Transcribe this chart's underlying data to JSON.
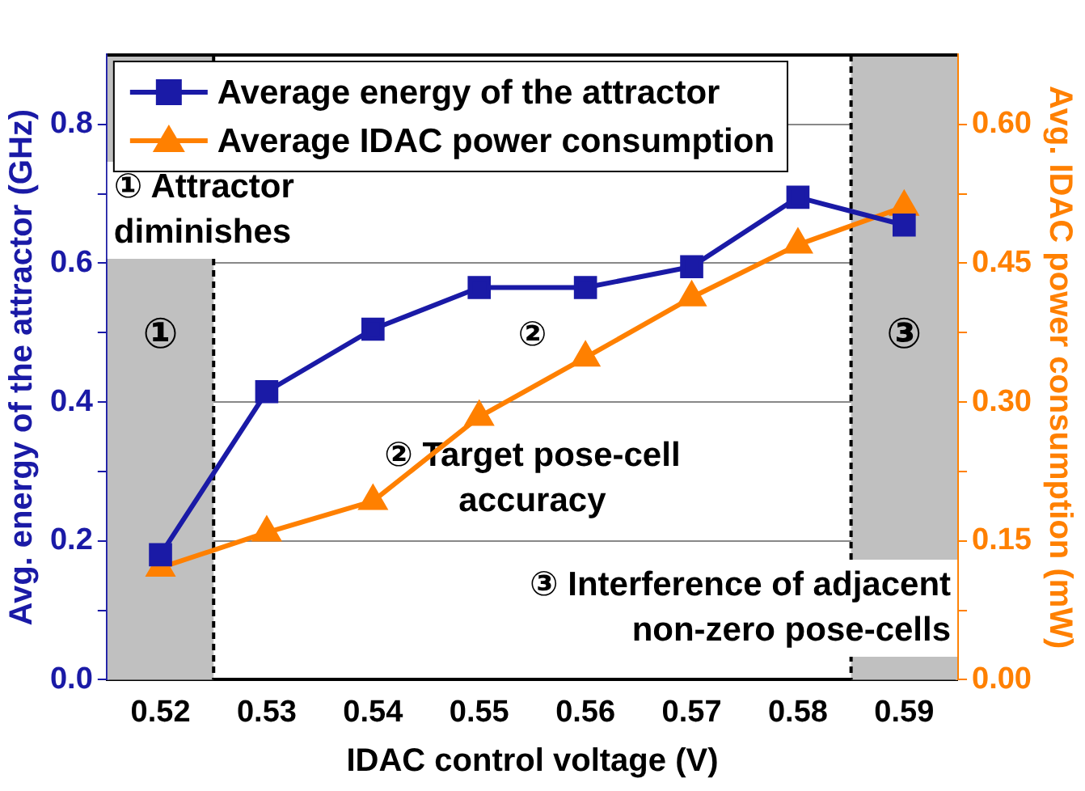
{
  "chart_data": {
    "type": "line",
    "xlabel": "IDAC control voltage (V)",
    "ylabel": "Avg. energy of the attractor (GHz)",
    "y2label": "Avg. IDAC power consumption (mW)",
    "x": [
      0.52,
      0.53,
      0.54,
      0.55,
      0.56,
      0.57,
      0.58,
      0.59
    ],
    "xlim": [
      0.515,
      0.595
    ],
    "xticks": [
      0.52,
      0.53,
      0.54,
      0.55,
      0.56,
      0.57,
      0.58,
      0.59
    ],
    "ylim": [
      0,
      0.9
    ],
    "yticks": [
      {
        "value": 0,
        "label": "0.0"
      },
      {
        "value": 0.1,
        "label": null
      },
      0.2,
      {
        "value": 0.3,
        "label": null
      },
      0.4,
      {
        "value": 0.5,
        "label": null
      },
      0.6,
      {
        "value": 0.7,
        "label": null
      },
      0.8
    ],
    "y2lim": [
      0,
      0.675
    ],
    "y2ticks": [
      {
        "value": 0,
        "label": "0.00"
      },
      {
        "value": 0.075,
        "label": null
      },
      0.15,
      {
        "value": 0.225,
        "label": null
      },
      {
        "value": 0.3,
        "label": "0.30"
      },
      {
        "value": 0.375,
        "label": null
      },
      0.45,
      {
        "value": 0.525,
        "label": null
      },
      {
        "value": 0.6,
        "label": "0.60"
      }
    ],
    "series": [
      {
        "name": "Average energy of the attractor",
        "color": "#1a1aa6",
        "marker": "square",
        "values": [
          0.18,
          0.415,
          0.505,
          0.565,
          0.565,
          0.595,
          0.695,
          0.655
        ]
      },
      {
        "name": "Average IDAC power consumption",
        "color": "#ff8000",
        "marker": "triangle",
        "axis": "y2",
        "values": [
          0.121,
          0.159,
          0.193,
          0.284,
          0.348,
          0.413,
          0.47,
          0.511
        ]
      }
    ],
    "bands": [
      {
        "axis": "x",
        "from": 0.515,
        "to": 0.525,
        "label": "①",
        "color": "#c0c0c0"
      },
      {
        "axis": "x",
        "from": 0.585,
        "to": 0.595,
        "label": "③",
        "color": "#c0c0c0"
      }
    ],
    "ref_lines": [
      {
        "axis": "x",
        "value": 0.525,
        "color": "#000000",
        "line_style": "dashed"
      },
      {
        "axis": "x",
        "value": 0.585,
        "color": "#000000",
        "line_style": "dashed"
      }
    ],
    "annotations": [
      "① Attractor\ndiminishes",
      "②",
      "② Target pose-cell\naccuracy",
      "③ Interference of adjacent\nnon-zero pose-cells"
    ],
    "grid": "y",
    "legend": "top left",
    "line_style": "solid"
  }
}
